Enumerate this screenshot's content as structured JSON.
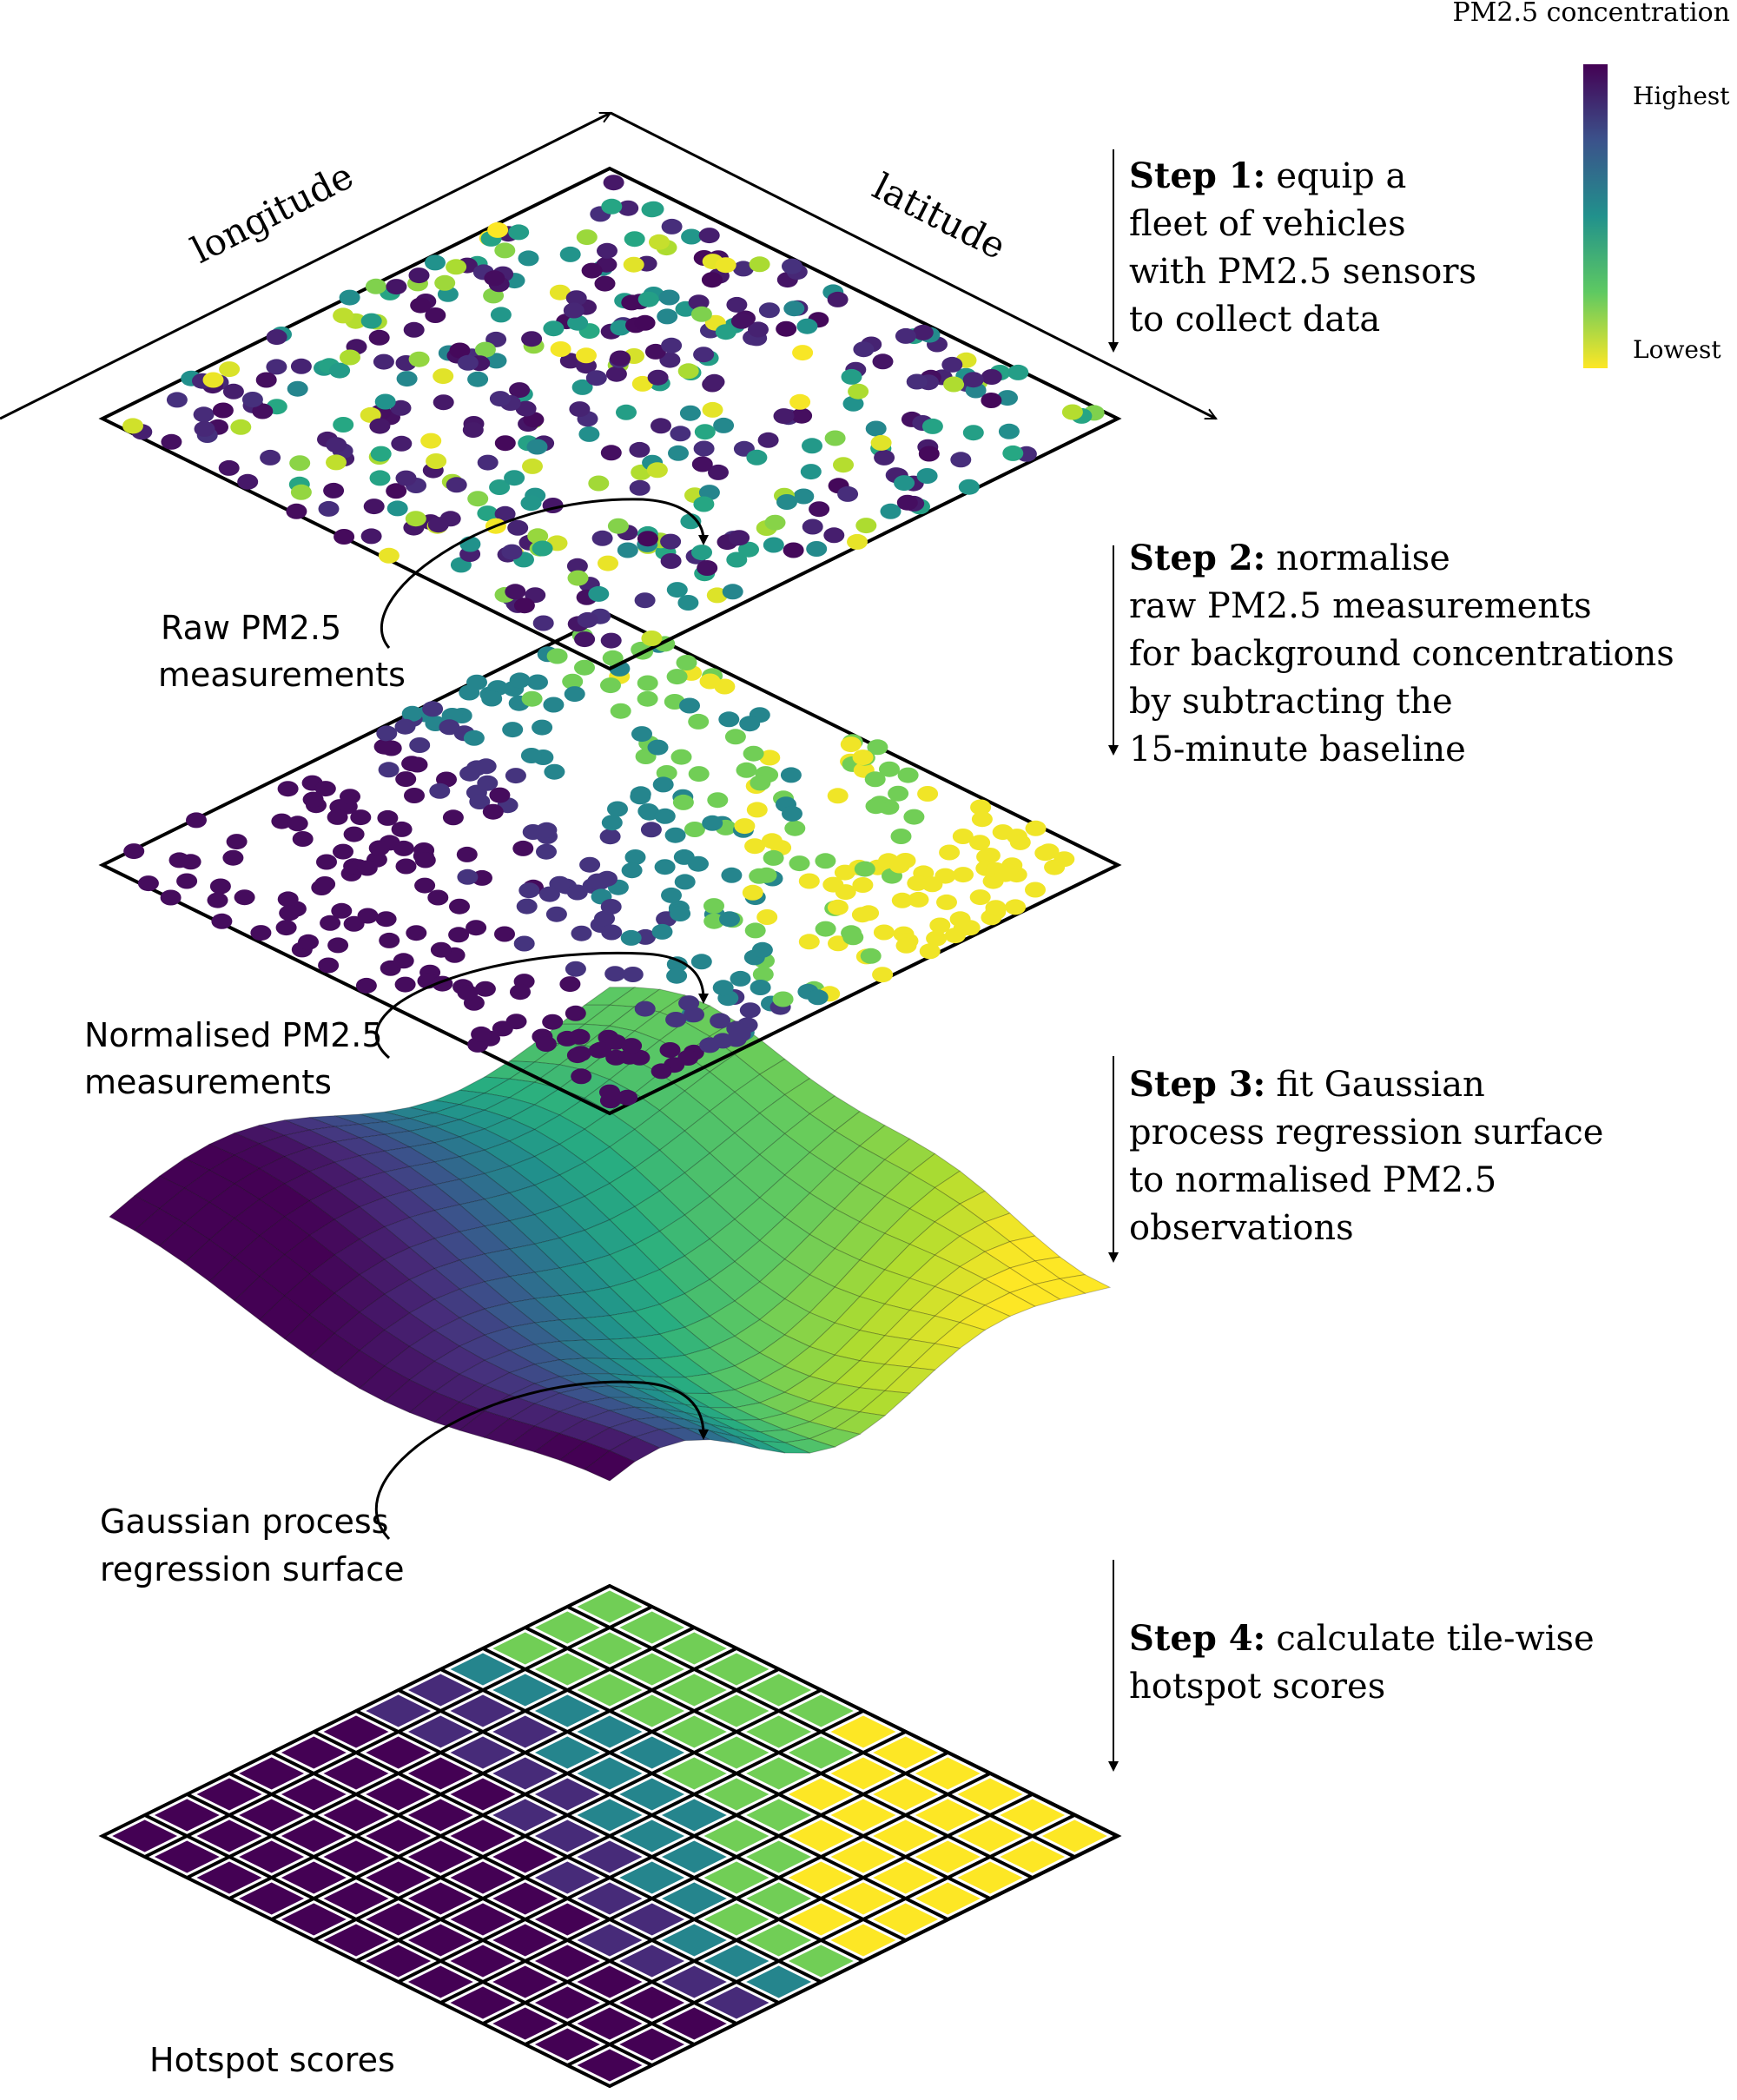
{
  "colorbar": {
    "title": "PM2.5 concentration",
    "high_label": "Highest",
    "low_label": "Lowest"
  },
  "axes": {
    "x_label": "longitude",
    "y_label": "latitude"
  },
  "steps": [
    {
      "bold": "Step 1:",
      "lines": [
        "equip a",
        "fleet of vehicles",
        "with PM2.5 sensors",
        "to collect data"
      ]
    },
    {
      "bold": "Step 2:",
      "lines": [
        "normalise",
        "raw PM2.5 measurements",
        "for background concentrations",
        "by subtracting the",
        "15-minute baseline"
      ]
    },
    {
      "bold": "Step 3:",
      "lines": [
        "fit Gaussian",
        "process regression surface",
        "to normalised PM2.5",
        "observations"
      ]
    },
    {
      "bold": "Step 4:",
      "lines": [
        "calculate tile-wise",
        "hotspot scores"
      ]
    }
  ],
  "layer_labels": [
    [
      "Raw PM2.5",
      "measurements"
    ],
    [
      "Normalised PM2.5",
      "measurements"
    ],
    [
      "Gaussian process",
      "regression surface"
    ],
    [
      "Hotspot scores"
    ]
  ],
  "colors": {
    "viridis": [
      "#440154",
      "#472d7b",
      "#3b528b",
      "#2c728e",
      "#21918c",
      "#28ae80",
      "#5ec962",
      "#addc30",
      "#fde725"
    ]
  }
}
